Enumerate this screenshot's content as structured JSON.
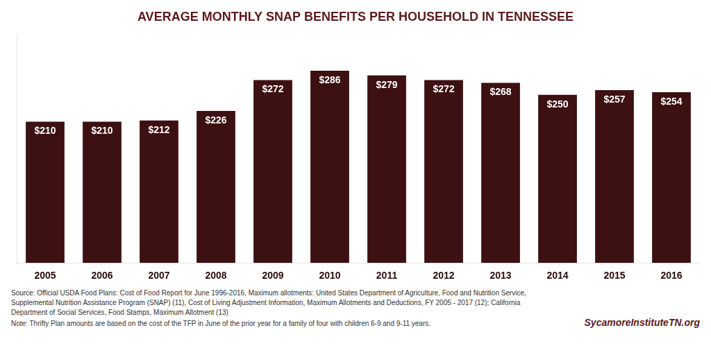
{
  "chart_data": {
    "type": "bar",
    "title": "AVERAGE MONTHLY SNAP BENEFITS PER HOUSEHOLD IN TENNESSEE",
    "categories": [
      "2005",
      "2006",
      "2007",
      "2008",
      "2009",
      "2010",
      "2011",
      "2012",
      "2013",
      "2014",
      "2015",
      "2016"
    ],
    "values": [
      210,
      210,
      212,
      226,
      272,
      286,
      279,
      272,
      268,
      250,
      257,
      254
    ],
    "value_labels": [
      "$210",
      "$210",
      "$212",
      "$226",
      "$272",
      "$286",
      "$279",
      "$272",
      "$268",
      "$250",
      "$257",
      "$254"
    ],
    "color": "#3d1012",
    "ylim": [
      0,
      340
    ],
    "yticks": [],
    "grid": false,
    "data_labels": true,
    "tick_labels": "x",
    "annotations": [
      "Source: Official USDA Food Plans: Cost of Food Report for June 1996-2016, Maximum allotments: United States Department of Agriculture, Food and Nutrition Service,",
      "Supplemental Nutrition Assistance Program (SNAP) (11), Cost of Living Adjustment Information, Maximum Allotments and Deductions, FY 2005 - 2017 (12); California",
      "Department of Social Services, Food Stamps, Maximum Allotment (13)",
      "Note: Thrifty Plan amounts are based on the cost of the TFP in June of the prior year for a family of four with children 6-9 and 9-11 years."
    ],
    "watermark": "SycamoreInstituteTN.org"
  }
}
